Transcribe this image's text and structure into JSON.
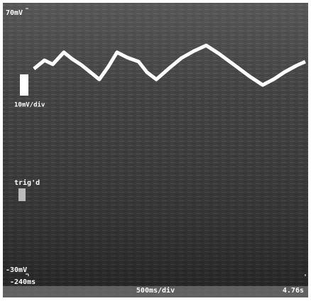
{
  "chart_data": {
    "type": "line",
    "x": [
      -0.14,
      0.05,
      0.2,
      0.4,
      0.55,
      0.72,
      0.88,
      1.04,
      1.2,
      1.36,
      1.55,
      1.75,
      1.9,
      2.07,
      2.3,
      2.52,
      2.75,
      2.97,
      3.2,
      3.48,
      3.75,
      3.99,
      4.2,
      4.38,
      4.6,
      4.76
    ],
    "series": [
      {
        "color": "#ffffff",
        "values": [
          47.3,
          50.5,
          49,
          53.5,
          51,
          48.7,
          46,
          43.3,
          48,
          53.5,
          51.5,
          50,
          46,
          43.3,
          47.5,
          51.3,
          54,
          56.1,
          53,
          48.7,
          44.5,
          41.2,
          43.5,
          46,
          48.5,
          50
        ]
      }
    ],
    "xlim": [
      -0.24,
      4.76
    ],
    "xticks": [
      {
        "value": -0.24,
        "label": "-240ms"
      },
      {
        "value": 4.76,
        "label": "4.76s"
      }
    ],
    "ylim": [
      -30,
      70
    ],
    "yticks": [
      {
        "value": 70,
        "label": "70mV"
      },
      {
        "value": -30,
        "label": "-30mV"
      }
    ],
    "y_scale_label": "10mV/div",
    "x_scale_label": "500ms/div",
    "trigger_label": "trig'd",
    "grid": false
  }
}
